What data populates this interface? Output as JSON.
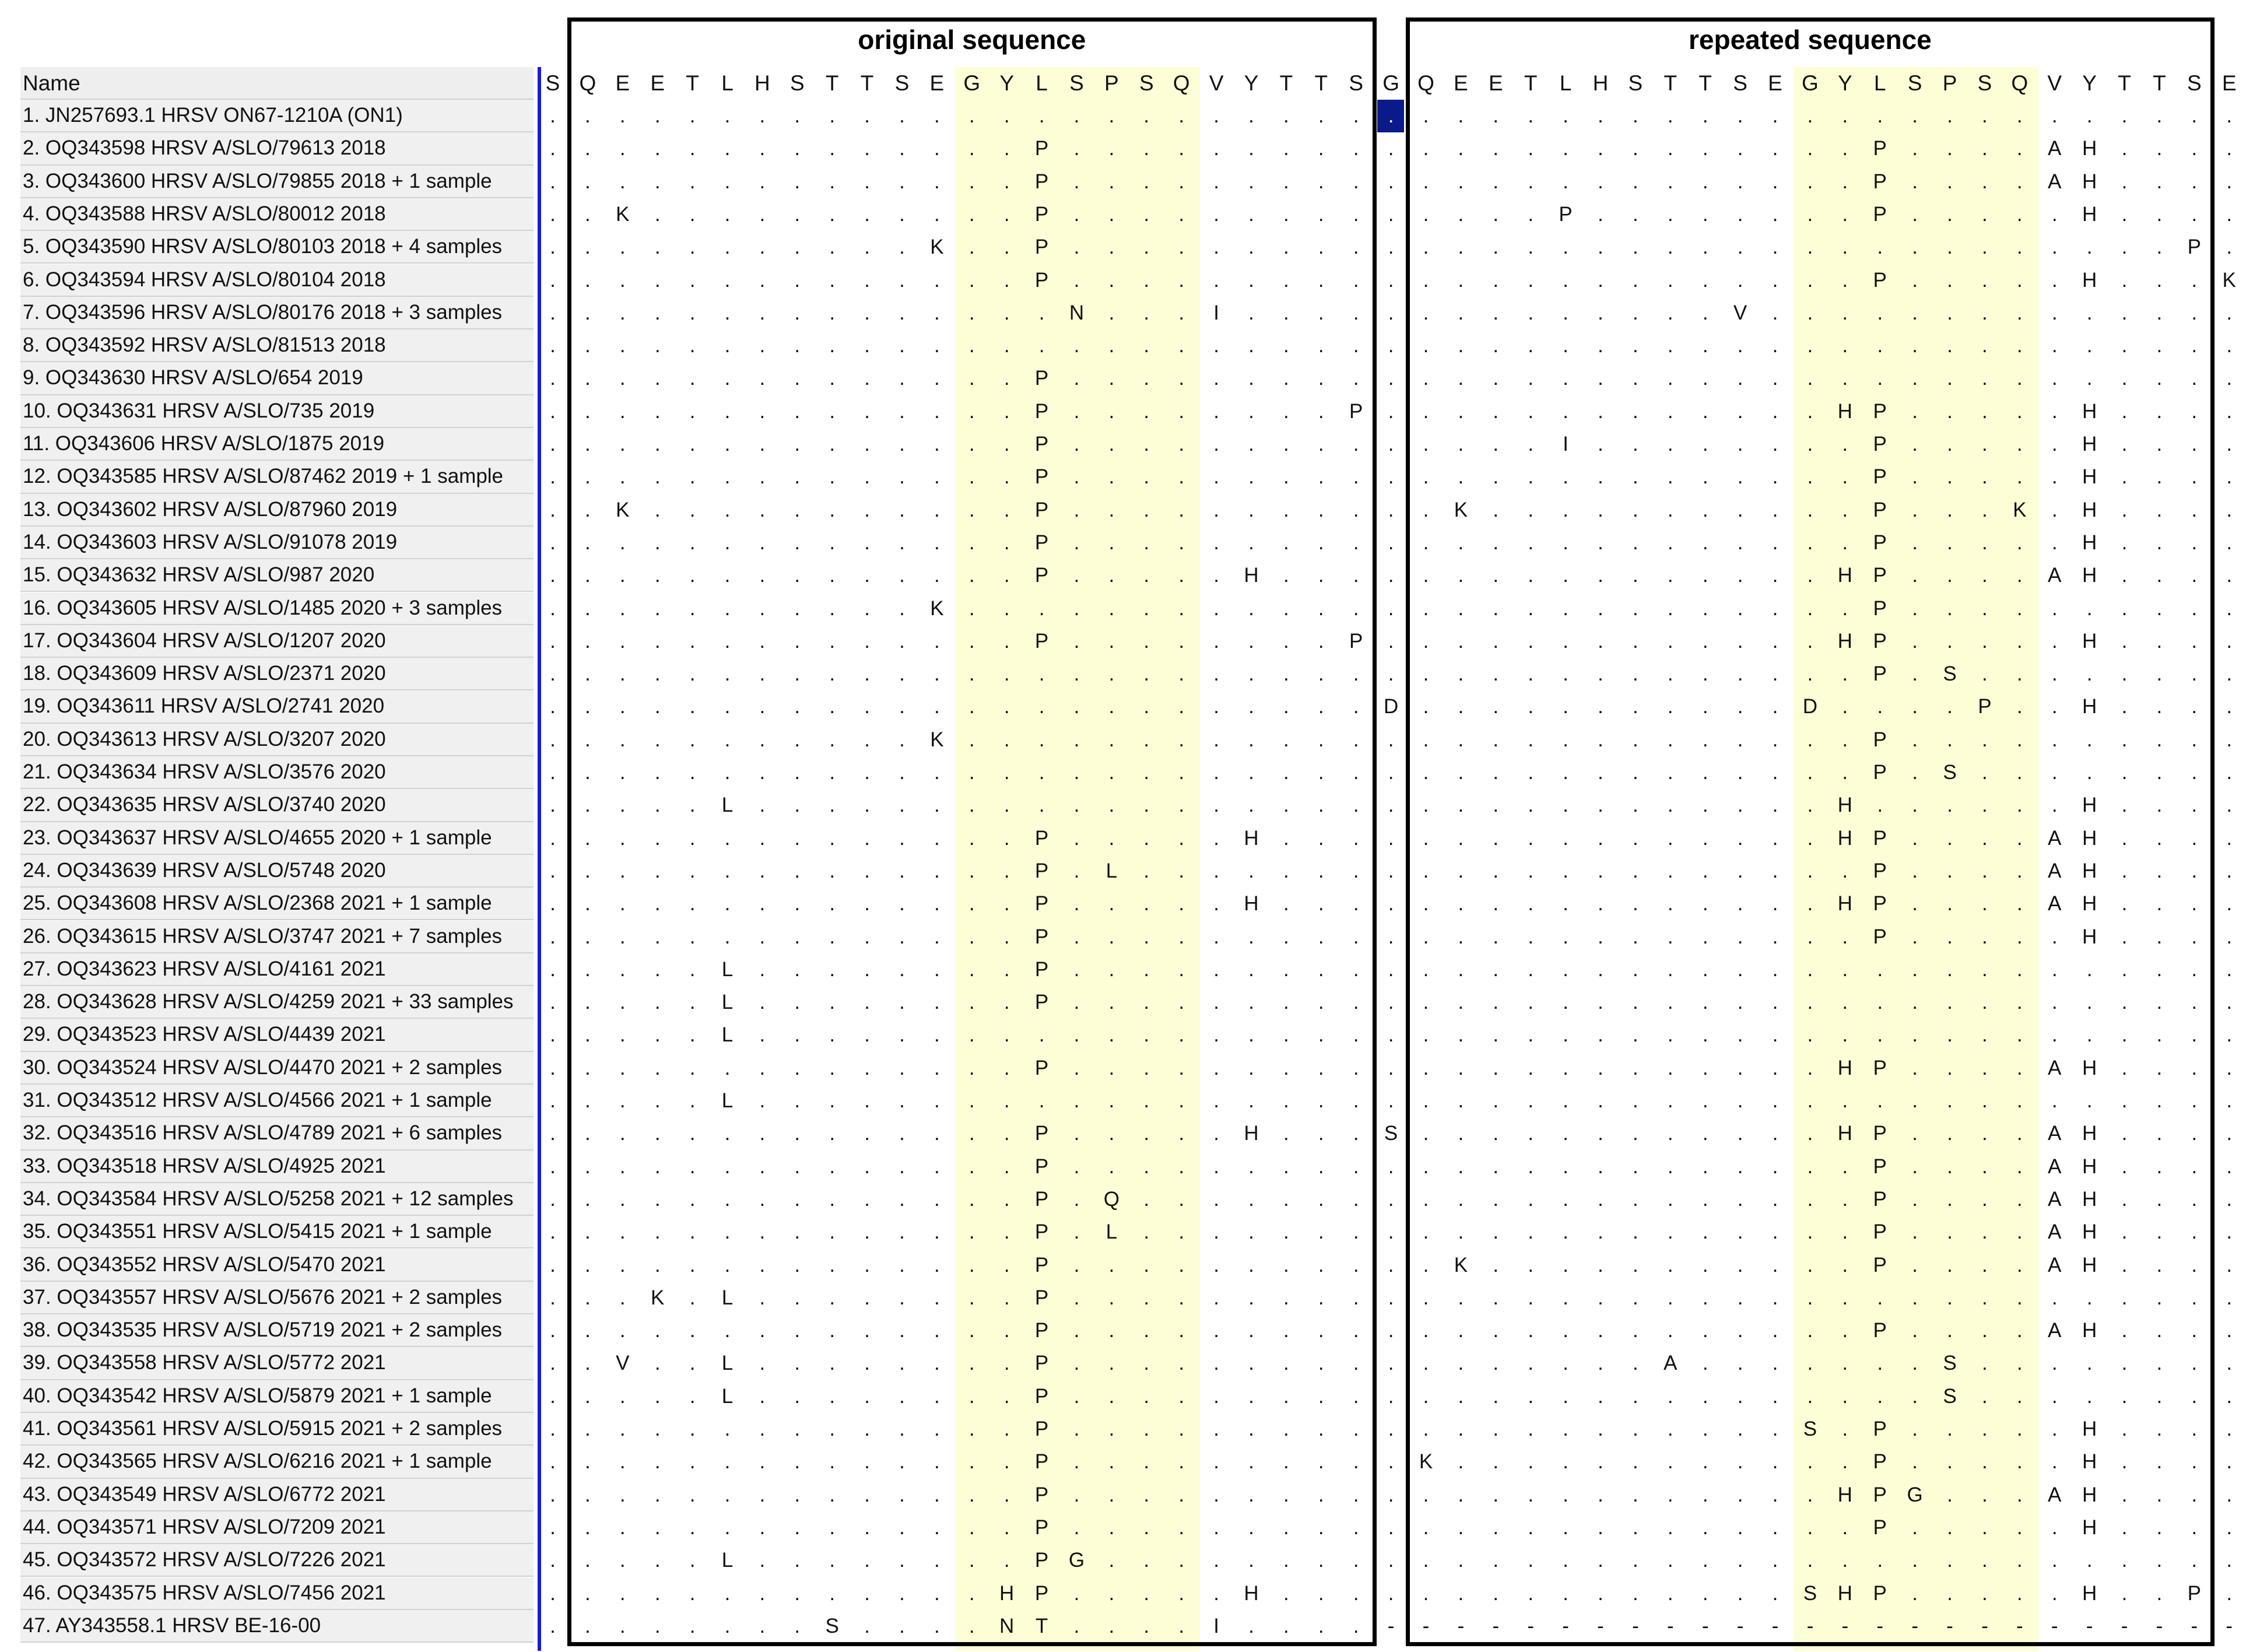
{
  "name_header": "Name",
  "group_labels": {
    "original": "original sequence",
    "repeated": "repeated sequence"
  },
  "colors": {
    "highlight": "#fefed6",
    "separator": "#1a1adc",
    "selected_cell": "#0b1a8a"
  },
  "reference_residues": [
    "S",
    "Q",
    "E",
    "E",
    "T",
    "L",
    "H",
    "S",
    "T",
    "T",
    "S",
    "E",
    "G",
    "Y",
    "L",
    "S",
    "P",
    "S",
    "Q",
    "V",
    "Y",
    "T",
    "T",
    "S",
    "G",
    "Q",
    "E",
    "E",
    "T",
    "L",
    "H",
    "S",
    "T",
    "T",
    "S",
    "E",
    "G",
    "Y",
    "L",
    "S",
    "P",
    "S",
    "Q",
    "V",
    "Y",
    "T",
    "T",
    "S",
    "E"
  ],
  "sequences": [
    {
      "name": "1. JN257693.1 HRSV ON67-1210A (ON1)",
      "mutations": {}
    },
    {
      "name": "2. OQ343598 HRSV A/SLO/79613 2018",
      "mutations": {
        "14": "P",
        "38": "P",
        "43": "A",
        "44": "H"
      }
    },
    {
      "name": "3. OQ343600 HRSV A/SLO/79855 2018 + 1 sample",
      "mutations": {
        "14": "P",
        "38": "P",
        "43": "A",
        "44": "H"
      }
    },
    {
      "name": "4. OQ343588 HRSV A/SLO/80012 2018",
      "mutations": {
        "2": "K",
        "14": "P",
        "29": "P",
        "38": "P",
        "44": "H"
      }
    },
    {
      "name": "5. OQ343590 HRSV A/SLO/80103 2018 + 4 samples",
      "mutations": {
        "11": "K",
        "14": "P",
        "47": "P"
      }
    },
    {
      "name": "6. OQ343594 HRSV A/SLO/80104 2018",
      "mutations": {
        "14": "P",
        "38": "P",
        "44": "H",
        "48": "K"
      }
    },
    {
      "name": "7. OQ343596 HRSV A/SLO/80176 2018 + 3 samples",
      "mutations": {
        "15": "N",
        "19": "I",
        "34": "V"
      }
    },
    {
      "name": "8. OQ343592 HRSV A/SLO/81513 2018",
      "mutations": {}
    },
    {
      "name": "9. OQ343630 HRSV A/SLO/654 2019",
      "mutations": {
        "14": "P"
      }
    },
    {
      "name": "10. OQ343631 HRSV A/SLO/735 2019",
      "mutations": {
        "14": "P",
        "23": "P",
        "37": "H",
        "38": "P",
        "44": "H"
      }
    },
    {
      "name": "11. OQ343606 HRSV A/SLO/1875 2019",
      "mutations": {
        "14": "P",
        "29": "I",
        "38": "P",
        "44": "H"
      }
    },
    {
      "name": "12. OQ343585 HRSV A/SLO/87462 2019 + 1 sample",
      "mutations": {
        "14": "P",
        "38": "P",
        "44": "H"
      }
    },
    {
      "name": "13. OQ343602 HRSV A/SLO/87960 2019",
      "mutations": {
        "2": "K",
        "14": "P",
        "26": "K",
        "38": "P",
        "42": "K",
        "44": "H"
      }
    },
    {
      "name": "14. OQ343603 HRSV A/SLO/91078 2019",
      "mutations": {
        "14": "P",
        "38": "P",
        "44": "H"
      }
    },
    {
      "name": "15. OQ343632 HRSV A/SLO/987 2020",
      "mutations": {
        "14": "P",
        "20": "H",
        "37": "H",
        "38": "P",
        "43": "A",
        "44": "H"
      }
    },
    {
      "name": "16. OQ343605 HRSV A/SLO/1485 2020 + 3 samples",
      "mutations": {
        "11": "K",
        "38": "P"
      }
    },
    {
      "name": "17. OQ343604 HRSV A/SLO/1207 2020",
      "mutations": {
        "14": "P",
        "23": "P",
        "37": "H",
        "38": "P",
        "44": "H"
      }
    },
    {
      "name": "18. OQ343609 HRSV A/SLO/2371 2020",
      "mutations": {
        "38": "P",
        "40": "S"
      }
    },
    {
      "name": "19. OQ343611 HRSV A/SLO/2741 2020",
      "mutations": {
        "24": "D",
        "36": "D",
        "41": "P",
        "44": "H"
      }
    },
    {
      "name": "20. OQ343613 HRSV A/SLO/3207 2020",
      "mutations": {
        "11": "K",
        "38": "P"
      }
    },
    {
      "name": "21. OQ343634 HRSV A/SLO/3576 2020",
      "mutations": {
        "38": "P",
        "40": "S"
      }
    },
    {
      "name": "22. OQ343635 HRSV A/SLO/3740 2020",
      "mutations": {
        "5": "L",
        "37": "H",
        "44": "H"
      }
    },
    {
      "name": "23. OQ343637 HRSV A/SLO/4655 2020 + 1 sample",
      "mutations": {
        "14": "P",
        "20": "H",
        "37": "H",
        "38": "P",
        "43": "A",
        "44": "H"
      }
    },
    {
      "name": "24. OQ343639 HRSV A/SLO/5748 2020",
      "mutations": {
        "14": "P",
        "16": "L",
        "38": "P",
        "43": "A",
        "44": "H"
      }
    },
    {
      "name": "25. OQ343608 HRSV A/SLO/2368 2021 + 1 sample",
      "mutations": {
        "14": "P",
        "20": "H",
        "37": "H",
        "38": "P",
        "43": "A",
        "44": "H"
      }
    },
    {
      "name": "26. OQ343615 HRSV A/SLO/3747 2021 + 7 samples",
      "mutations": {
        "14": "P",
        "38": "P",
        "44": "H"
      }
    },
    {
      "name": "27. OQ343623 HRSV A/SLO/4161 2021",
      "mutations": {
        "5": "L",
        "14": "P"
      }
    },
    {
      "name": "28. OQ343628 HRSV A/SLO/4259 2021 + 33 samples",
      "mutations": {
        "5": "L",
        "14": "P"
      }
    },
    {
      "name": "29. OQ343523 HRSV A/SLO/4439 2021",
      "mutations": {
        "5": "L"
      }
    },
    {
      "name": "30. OQ343524 HRSV A/SLO/4470 2021 + 2 samples",
      "mutations": {
        "14": "P",
        "37": "H",
        "38": "P",
        "43": "A",
        "44": "H"
      }
    },
    {
      "name": "31. OQ343512 HRSV A/SLO/4566 2021 + 1 sample",
      "mutations": {
        "5": "L"
      }
    },
    {
      "name": "32. OQ343516 HRSV A/SLO/4789 2021 + 6 samples",
      "mutations": {
        "14": "P",
        "20": "H",
        "24": "S",
        "37": "H",
        "38": "P",
        "43": "A",
        "44": "H"
      }
    },
    {
      "name": "33. OQ343518 HRSV A/SLO/4925 2021",
      "mutations": {
        "14": "P",
        "38": "P",
        "43": "A",
        "44": "H"
      }
    },
    {
      "name": "34. OQ343584 HRSV A/SLO/5258 2021 + 12 samples",
      "mutations": {
        "14": "P",
        "16": "Q",
        "38": "P",
        "43": "A",
        "44": "H"
      }
    },
    {
      "name": "35. OQ343551 HRSV A/SLO/5415 2021 + 1 sample",
      "mutations": {
        "14": "P",
        "16": "L",
        "38": "P",
        "43": "A",
        "44": "H"
      }
    },
    {
      "name": "36. OQ343552 HRSV A/SLO/5470 2021",
      "mutations": {
        "14": "P",
        "26": "K",
        "38": "P",
        "43": "A",
        "44": "H"
      }
    },
    {
      "name": "37. OQ343557 HRSV A/SLO/5676 2021 + 2 samples",
      "mutations": {
        "3": "K",
        "5": "L",
        "14": "P"
      }
    },
    {
      "name": "38. OQ343535 HRSV A/SLO/5719 2021 + 2 samples",
      "mutations": {
        "14": "P",
        "38": "P",
        "43": "A",
        "44": "H"
      }
    },
    {
      "name": "39. OQ343558 HRSV A/SLO/5772 2021",
      "mutations": {
        "2": "V",
        "5": "L",
        "14": "P",
        "32": "A",
        "40": "S"
      }
    },
    {
      "name": "40. OQ343542 HRSV A/SLO/5879 2021 + 1 sample",
      "mutations": {
        "5": "L",
        "14": "P",
        "40": "S"
      }
    },
    {
      "name": "41. OQ343561 HRSV A/SLO/5915 2021 + 2 samples",
      "mutations": {
        "14": "P",
        "36": "S",
        "38": "P",
        "44": "H"
      }
    },
    {
      "name": "42. OQ343565 HRSV A/SLO/6216 2021 + 1 sample",
      "mutations": {
        "14": "P",
        "25": "K",
        "38": "P",
        "44": "H"
      }
    },
    {
      "name": "43. OQ343549 HRSV A/SLO/6772 2021",
      "mutations": {
        "14": "P",
        "37": "H",
        "38": "P",
        "39": "G",
        "43": "A",
        "44": "H"
      }
    },
    {
      "name": "44. OQ343571 HRSV A/SLO/7209 2021",
      "mutations": {
        "14": "P",
        "38": "P",
        "44": "H"
      }
    },
    {
      "name": "45. OQ343572 HRSV A/SLO/7226 2021",
      "mutations": {
        "5": "L",
        "14": "P",
        "15": "G"
      }
    },
    {
      "name": "46. OQ343575 HRSV A/SLO/7456 2021",
      "mutations": {
        "13": "H",
        "14": "P",
        "20": "H",
        "36": "S",
        "37": "H",
        "38": "P",
        "44": "H",
        "47": "P"
      }
    },
    {
      "name": "47. AY343558.1 HRSV BE-16-00",
      "mutations": {
        "8": "S",
        "13": "N",
        "14": "T",
        "19": "I"
      },
      "gap_from": 24
    }
  ]
}
